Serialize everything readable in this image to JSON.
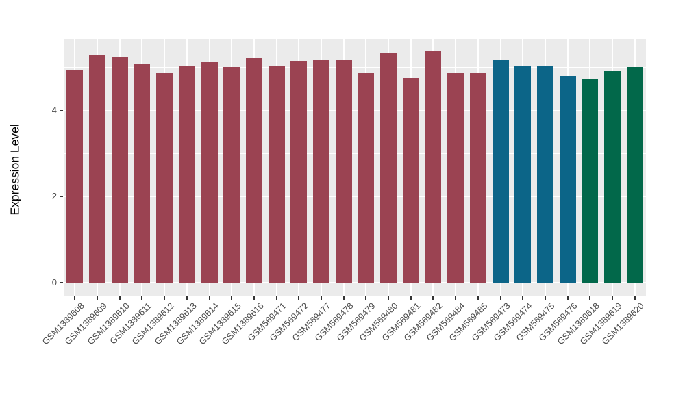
{
  "chart_data": {
    "type": "bar",
    "title": "",
    "xlabel": "",
    "ylabel": "Expression Level",
    "ylim": [
      0,
      5.65
    ],
    "y_major_ticks": [
      0,
      2,
      4
    ],
    "y_minor_ticks": [
      1,
      3,
      5
    ],
    "grid": true,
    "legend": "none",
    "panel_bg": "#EBEBEB",
    "grid_color": "#FFFFFF",
    "axis_text_color": "#4D4D4D",
    "axis_title_color": "#000000",
    "categories": [
      "GSM1389608",
      "GSM1389609",
      "GSM1389610",
      "GSM1389611",
      "GSM1389612",
      "GSM1389613",
      "GSM1389614",
      "GSM1389615",
      "GSM1389616",
      "GSM569471",
      "GSM569472",
      "GSM569477",
      "GSM569478",
      "GSM569479",
      "GSM569480",
      "GSM569481",
      "GSM569482",
      "GSM569484",
      "GSM569485",
      "GSM569473",
      "GSM569474",
      "GSM569475",
      "GSM569476",
      "GSM1389618",
      "GSM1389619",
      "GSM1389620"
    ],
    "values": [
      4.93,
      5.28,
      5.23,
      5.08,
      4.86,
      5.03,
      5.12,
      5.0,
      5.21,
      5.03,
      5.14,
      5.18,
      5.17,
      4.88,
      5.32,
      4.74,
      5.38,
      4.88,
      4.87,
      5.16,
      5.03,
      5.03,
      4.8,
      4.73,
      4.9,
      5.0
    ],
    "groups": [
      "maroon",
      "maroon",
      "maroon",
      "maroon",
      "maroon",
      "maroon",
      "maroon",
      "maroon",
      "maroon",
      "maroon",
      "maroon",
      "maroon",
      "maroon",
      "maroon",
      "maroon",
      "maroon",
      "maroon",
      "maroon",
      "maroon",
      "teal",
      "teal",
      "teal",
      "teal",
      "green",
      "green",
      "green"
    ],
    "palette": {
      "maroon": "#9B4352",
      "teal": "#0C6588",
      "green": "#02684A"
    }
  }
}
